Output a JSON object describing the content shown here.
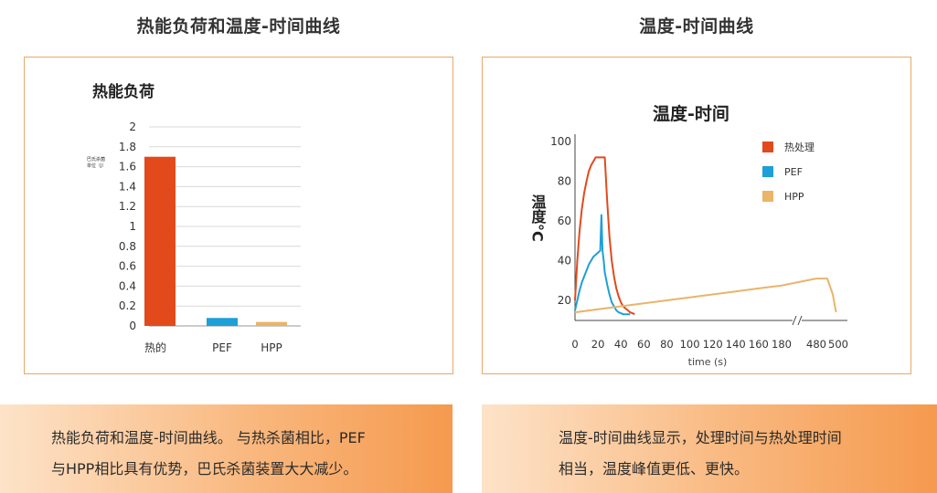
{
  "left": {
    "panel_title": "热能负荷和温度-时间曲线",
    "caption": [
      "热能负荷和温度-时间曲线。 与热杀菌相比，PEF",
      "与HPP相比具有优势，巴氏杀菌装置大大减少。"
    ]
  },
  "right": {
    "panel_title": "温度-时间曲线",
    "caption": [
      "温度-时间曲线显示，处理时间与热处理时间",
      "相当，温度峰值更低、更快。"
    ]
  },
  "colors": {
    "thermal": "#e24a1c",
    "pef": "#1e9fd8",
    "hpp": "#eab469",
    "accent": "#f59a4e"
  },
  "chart_data": [
    {
      "type": "bar",
      "title": "热能负荷",
      "ylabel": "",
      "small_label": [
        "巴氏杀菌",
        "单位（J）"
      ],
      "categories": [
        "热的",
        "PEF",
        "HPP"
      ],
      "values": [
        1.7,
        0.08,
        0.04
      ],
      "ylim": [
        0,
        2
      ],
      "yticks": [
        "0",
        "0.2",
        "0.4",
        "0.6",
        "0.8",
        "1",
        "1.2",
        "1.4",
        "1.6",
        "1.8",
        "2"
      ],
      "grid": true
    },
    {
      "type": "line",
      "title": "温度-时间",
      "ylabel": "温度°C",
      "xlabel": "time (s)",
      "yticks": [
        "20",
        "40",
        "60",
        "80",
        "100"
      ],
      "xticks": [
        "0",
        "20",
        "40",
        "60",
        "80",
        "100",
        "120",
        "140",
        "160",
        "180",
        "480",
        "500"
      ],
      "axis_break_between": [
        "180",
        "480"
      ],
      "ylim": [
        10,
        100
      ],
      "legend_position": "top-right",
      "series": [
        {
          "name": "热处理",
          "x": [
            0,
            2,
            4,
            6,
            8,
            10,
            12,
            14,
            16,
            18,
            20,
            22,
            24,
            26,
            28,
            30,
            32,
            34,
            36,
            38,
            40,
            42,
            44,
            46,
            48,
            50,
            52
          ],
          "y": [
            20,
            40,
            55,
            66,
            74,
            80,
            85,
            88,
            90,
            92,
            92,
            92,
            92,
            92,
            70,
            52,
            40,
            32,
            26,
            22,
            19,
            17,
            16,
            15,
            14,
            13.5,
            13
          ]
        },
        {
          "name": "PEF",
          "x": [
            0,
            2,
            4,
            6,
            8,
            10,
            12,
            14,
            16,
            18,
            20,
            22,
            23,
            24,
            25,
            26,
            28,
            30,
            32,
            34,
            36,
            38,
            40,
            42,
            44,
            46,
            48
          ],
          "y": [
            15,
            20,
            25,
            29,
            32,
            35,
            38,
            40,
            42,
            43,
            44,
            45,
            63,
            45,
            40,
            34,
            28,
            23,
            19,
            17,
            15,
            14,
            13.5,
            13,
            13,
            13,
            13
          ]
        },
        {
          "name": "HPP",
          "x": [
            0,
            20,
            40,
            60,
            80,
            100,
            120,
            140,
            160,
            180,
            480,
            490,
            495,
            498
          ],
          "y": [
            14,
            15.5,
            17,
            18.5,
            20,
            21.5,
            23,
            24.5,
            26,
            27.5,
            31,
            31,
            23,
            14
          ]
        }
      ]
    }
  ]
}
